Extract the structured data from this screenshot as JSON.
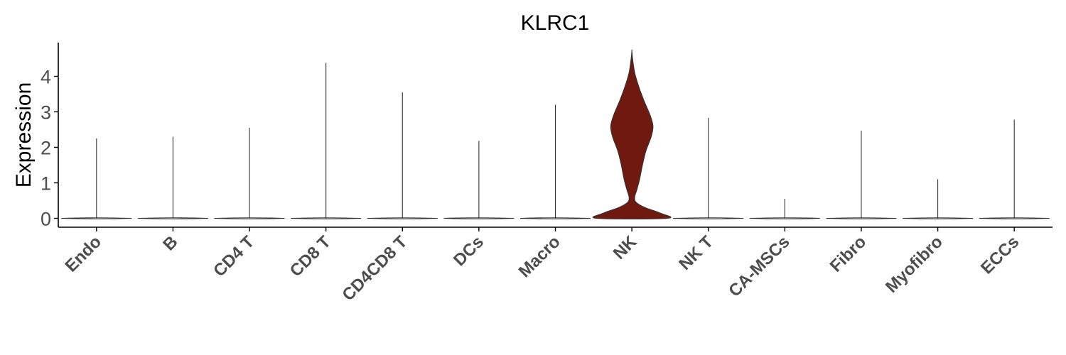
{
  "chart_data": {
    "type": "violin",
    "title": "KLRC1",
    "xlabel": "",
    "ylabel": "Expression",
    "ylim": [
      -0.25,
      4.95
    ],
    "yticks": [
      0,
      1,
      2,
      3,
      4
    ],
    "categories": [
      "Endo",
      "B",
      "CD4 T",
      "CD8 T",
      "CD4CD8 T",
      "DCs",
      "Macro",
      "NK",
      "NK T",
      "CA-MSCs",
      "Fibro",
      "Myofibro",
      "ECCs"
    ],
    "max_values": [
      2.25,
      2.3,
      2.55,
      4.38,
      3.55,
      2.18,
      3.2,
      4.72,
      2.83,
      0.55,
      2.47,
      1.1,
      2.78
    ],
    "fill_colors": [
      "#ffffff",
      "#ffffff",
      "#ffffff",
      "#ffffff",
      "#ffffff",
      "#ffffff",
      "#ffffff",
      "#701a0f",
      "#ffffff",
      "#ffffff",
      "#ffffff",
      "#ffffff",
      "#ffffff"
    ],
    "nk_density": [
      [
        0.0,
        1.0
      ],
      [
        0.15,
        0.8
      ],
      [
        0.3,
        0.38
      ],
      [
        0.45,
        0.12
      ],
      [
        0.6,
        0.08
      ],
      [
        0.8,
        0.14
      ],
      [
        1.1,
        0.22
      ],
      [
        1.5,
        0.3
      ],
      [
        1.9,
        0.4
      ],
      [
        2.3,
        0.55
      ],
      [
        2.6,
        0.6
      ],
      [
        2.9,
        0.52
      ],
      [
        3.3,
        0.35
      ],
      [
        3.7,
        0.2
      ],
      [
        4.1,
        0.08
      ],
      [
        4.5,
        0.02
      ],
      [
        4.72,
        0.0
      ]
    ],
    "grid": false,
    "legend": "none"
  }
}
